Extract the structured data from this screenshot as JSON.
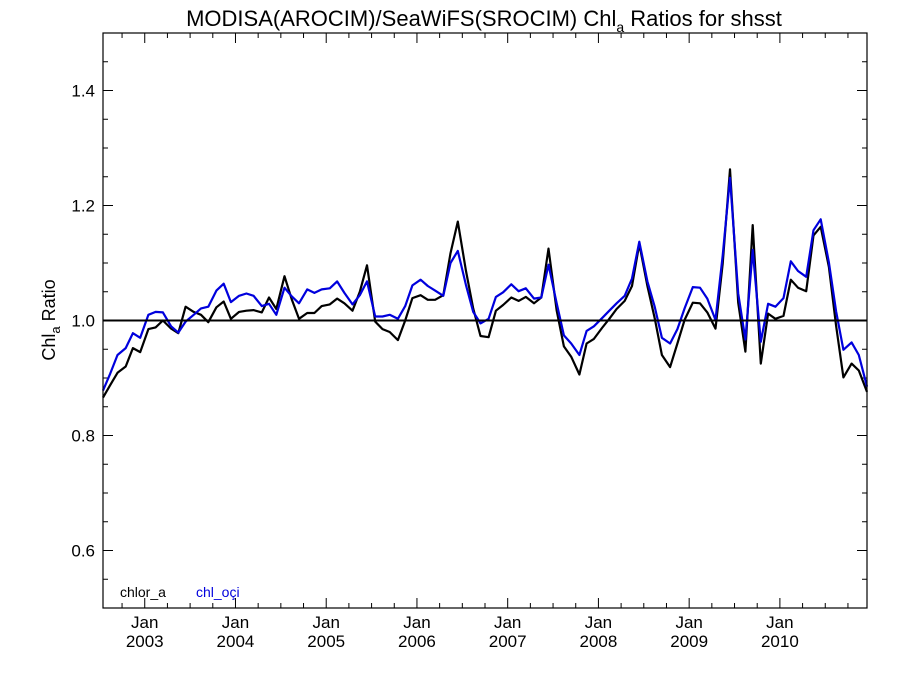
{
  "chart_data": {
    "type": "line",
    "title": {
      "prefix": "MODISA(AROCIM)/SeaWiFS(SROCIM)  Chl",
      "subscript": "a",
      "suffix": " Ratios for shsst"
    },
    "ylabel": {
      "prefix": "Chl",
      "subscript": "a",
      "suffix": " Ratio"
    },
    "ylim": [
      0.5,
      1.5
    ],
    "yticks": [
      {
        "value": 0.6,
        "label": "0.6"
      },
      {
        "value": 0.8,
        "label": "0.8"
      },
      {
        "value": 1.0,
        "label": "1.0"
      },
      {
        "value": 1.2,
        "label": "1.2"
      },
      {
        "value": 1.4,
        "label": "1.4"
      }
    ],
    "xlim": [
      2002.54,
      2010.96
    ],
    "xticks": [
      {
        "value": 2003.0,
        "month": "Jan",
        "year": "2003"
      },
      {
        "value": 2004.0,
        "month": "Jan",
        "year": "2004"
      },
      {
        "value": 2005.0,
        "month": "Jan",
        "year": "2005"
      },
      {
        "value": 2006.0,
        "month": "Jan",
        "year": "2006"
      },
      {
        "value": 2007.0,
        "month": "Jan",
        "year": "2007"
      },
      {
        "value": 2008.0,
        "month": "Jan",
        "year": "2008"
      },
      {
        "value": 2009.0,
        "month": "Jan",
        "year": "2009"
      },
      {
        "value": 2010.0,
        "month": "Jan",
        "year": "2010"
      }
    ],
    "reference_line": 1.0,
    "legend_placement": "bottom-left",
    "series": [
      {
        "name": "chlor_a",
        "color": "#000000",
        "x": [
          2002.54,
          2002.62,
          2002.7,
          2002.79,
          2002.87,
          2002.95,
          2003.04,
          2003.12,
          2003.2,
          2003.29,
          2003.37,
          2003.45,
          2003.54,
          2003.62,
          2003.7,
          2003.79,
          2003.87,
          2003.95,
          2004.04,
          2004.12,
          2004.2,
          2004.29,
          2004.37,
          2004.45,
          2004.54,
          2004.62,
          2004.7,
          2004.79,
          2004.87,
          2004.95,
          2005.04,
          2005.12,
          2005.2,
          2005.29,
          2005.37,
          2005.45,
          2005.54,
          2005.62,
          2005.7,
          2005.79,
          2005.87,
          2005.95,
          2006.04,
          2006.12,
          2006.2,
          2006.29,
          2006.37,
          2006.45,
          2006.54,
          2006.62,
          2006.7,
          2006.79,
          2006.87,
          2006.95,
          2007.04,
          2007.12,
          2007.2,
          2007.29,
          2007.37,
          2007.45,
          2007.54,
          2007.62,
          2007.7,
          2007.79,
          2007.87,
          2007.95,
          2008.04,
          2008.12,
          2008.2,
          2008.29,
          2008.37,
          2008.45,
          2008.54,
          2008.62,
          2008.7,
          2008.79,
          2008.87,
          2008.95,
          2009.04,
          2009.12,
          2009.2,
          2009.29,
          2009.37,
          2009.45,
          2009.54,
          2009.62,
          2009.7,
          2009.79,
          2009.87,
          2009.95,
          2010.04,
          2010.12,
          2010.2,
          2010.29,
          2010.37,
          2010.45,
          2010.54,
          2010.62,
          2010.7,
          2010.79,
          2010.87,
          2010.96
        ],
        "values": [
          0.866,
          0.888,
          0.909,
          0.92,
          0.952,
          0.945,
          0.985,
          0.988,
          1.0,
          0.986,
          0.978,
          1.024,
          1.015,
          1.01,
          0.997,
          1.023,
          1.033,
          1.003,
          1.015,
          1.017,
          1.018,
          1.014,
          1.04,
          1.02,
          1.077,
          1.037,
          1.003,
          1.013,
          1.013,
          1.025,
          1.028,
          1.038,
          1.03,
          1.017,
          1.05,
          1.096,
          0.998,
          0.985,
          0.98,
          0.966,
          1.0,
          1.039,
          1.044,
          1.036,
          1.036,
          1.044,
          1.117,
          1.172,
          1.087,
          1.021,
          0.973,
          0.971,
          1.017,
          1.027,
          1.04,
          1.034,
          1.041,
          1.03,
          1.04,
          1.125,
          1.017,
          0.955,
          0.937,
          0.906,
          0.96,
          0.968,
          0.987,
          1.003,
          1.02,
          1.034,
          1.06,
          1.133,
          1.06,
          1.004,
          0.94,
          0.919,
          0.96,
          1.001,
          1.031,
          1.03,
          1.014,
          0.986,
          1.099,
          1.263,
          1.031,
          0.946,
          1.166,
          0.925,
          1.012,
          1.003,
          1.008,
          1.071,
          1.057,
          1.051,
          1.148,
          1.163,
          1.093,
          0.991,
          0.901,
          0.925,
          0.913,
          0.876
        ]
      },
      {
        "name": "chl_oçi",
        "color": "#0000dd",
        "x": [
          2002.54,
          2002.62,
          2002.7,
          2002.79,
          2002.87,
          2002.95,
          2003.04,
          2003.12,
          2003.2,
          2003.29,
          2003.37,
          2003.45,
          2003.54,
          2003.62,
          2003.7,
          2003.79,
          2003.87,
          2003.95,
          2004.04,
          2004.12,
          2004.2,
          2004.29,
          2004.37,
          2004.45,
          2004.54,
          2004.62,
          2004.7,
          2004.79,
          2004.87,
          2004.95,
          2005.04,
          2005.12,
          2005.2,
          2005.29,
          2005.37,
          2005.45,
          2005.54,
          2005.62,
          2005.7,
          2005.79,
          2005.87,
          2005.95,
          2006.04,
          2006.12,
          2006.2,
          2006.29,
          2006.37,
          2006.45,
          2006.54,
          2006.62,
          2006.7,
          2006.79,
          2006.87,
          2006.95,
          2007.04,
          2007.12,
          2007.2,
          2007.29,
          2007.37,
          2007.45,
          2007.54,
          2007.62,
          2007.7,
          2007.79,
          2007.87,
          2007.95,
          2008.04,
          2008.12,
          2008.2,
          2008.29,
          2008.37,
          2008.45,
          2008.54,
          2008.62,
          2008.7,
          2008.79,
          2008.87,
          2008.95,
          2009.04,
          2009.12,
          2009.2,
          2009.29,
          2009.37,
          2009.45,
          2009.54,
          2009.62,
          2009.7,
          2009.79,
          2009.87,
          2009.95,
          2010.04,
          2010.12,
          2010.2,
          2010.29,
          2010.37,
          2010.45,
          2010.54,
          2010.62,
          2010.7,
          2010.79,
          2010.87,
          2010.96
        ],
        "values": [
          0.878,
          0.908,
          0.94,
          0.952,
          0.978,
          0.97,
          1.01,
          1.015,
          1.014,
          0.99,
          0.979,
          0.998,
          1.01,
          1.021,
          1.024,
          1.052,
          1.064,
          1.032,
          1.043,
          1.047,
          1.043,
          1.025,
          1.029,
          1.01,
          1.057,
          1.042,
          1.03,
          1.054,
          1.048,
          1.054,
          1.056,
          1.068,
          1.048,
          1.028,
          1.044,
          1.068,
          1.007,
          1.007,
          1.01,
          1.003,
          1.025,
          1.061,
          1.071,
          1.06,
          1.052,
          1.043,
          1.1,
          1.121,
          1.062,
          1.015,
          0.995,
          1.003,
          1.041,
          1.049,
          1.063,
          1.051,
          1.056,
          1.038,
          1.04,
          1.097,
          1.03,
          0.974,
          0.96,
          0.94,
          0.982,
          0.99,
          1.004,
          1.017,
          1.03,
          1.043,
          1.073,
          1.137,
          1.068,
          1.024,
          0.97,
          0.96,
          0.985,
          1.021,
          1.058,
          1.057,
          1.038,
          1.001,
          1.113,
          1.248,
          1.047,
          0.967,
          1.123,
          0.963,
          1.029,
          1.024,
          1.039,
          1.103,
          1.086,
          1.076,
          1.157,
          1.176,
          1.101,
          1.016,
          0.949,
          0.962,
          0.94,
          0.885
        ]
      }
    ]
  }
}
